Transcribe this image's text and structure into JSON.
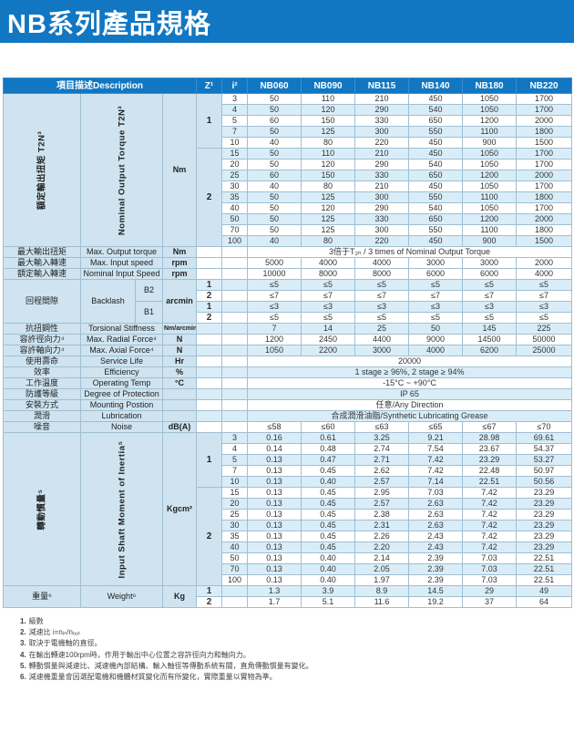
{
  "page_title": "NB系列產品規格",
  "colors": {
    "primary_blue": "#1277c2",
    "row_tint": "#d9edf8",
    "label_panel": "#cfe4f0"
  },
  "table": {
    "header": {
      "description": "項目描述Description",
      "z": "Z¹",
      "i": "i²",
      "models": [
        "NB060",
        "NB090",
        "NB115",
        "NB140",
        "NB180",
        "NB220"
      ]
    },
    "sections": [
      {
        "type": "matrix",
        "id": "nominal-output-torque",
        "zh": "額定輸出扭矩  T2N³",
        "en": "Nominal Output Torque T2N³",
        "unit": "Nm",
        "stripe_start": "white",
        "groups": [
          {
            "z": "1",
            "rows": [
              {
                "i": "3",
                "v": [
                  "50",
                  "110",
                  "210",
                  "450",
                  "1050",
                  "1700"
                ]
              },
              {
                "i": "4",
                "v": [
                  "50",
                  "120",
                  "290",
                  "540",
                  "1050",
                  "1700"
                ]
              },
              {
                "i": "5",
                "v": [
                  "60",
                  "150",
                  "330",
                  "650",
                  "1200",
                  "2000"
                ]
              },
              {
                "i": "7",
                "v": [
                  "50",
                  "125",
                  "300",
                  "550",
                  "1100",
                  "1800"
                ]
              },
              {
                "i": "10",
                "v": [
                  "40",
                  "80",
                  "220",
                  "450",
                  "900",
                  "1500"
                ]
              }
            ]
          },
          {
            "z": "2",
            "rows": [
              {
                "i": "15",
                "v": [
                  "50",
                  "110",
                  "210",
                  "450",
                  "1050",
                  "1700"
                ]
              },
              {
                "i": "20",
                "v": [
                  "50",
                  "120",
                  "290",
                  "540",
                  "1050",
                  "1700"
                ]
              },
              {
                "i": "25",
                "v": [
                  "60",
                  "150",
                  "330",
                  "650",
                  "1200",
                  "2000"
                ]
              },
              {
                "i": "30",
                "v": [
                  "40",
                  "80",
                  "210",
                  "450",
                  "1050",
                  "1700"
                ]
              },
              {
                "i": "35",
                "v": [
                  "50",
                  "125",
                  "300",
                  "550",
                  "1100",
                  "1800"
                ]
              },
              {
                "i": "40",
                "v": [
                  "50",
                  "120",
                  "290",
                  "540",
                  "1050",
                  "1700"
                ]
              },
              {
                "i": "50",
                "v": [
                  "50",
                  "125",
                  "330",
                  "650",
                  "1200",
                  "2000"
                ]
              },
              {
                "i": "70",
                "v": [
                  "50",
                  "125",
                  "300",
                  "550",
                  "1100",
                  "1800"
                ]
              },
              {
                "i": "100",
                "v": [
                  "40",
                  "80",
                  "220",
                  "450",
                  "900",
                  "1500"
                ]
              }
            ]
          }
        ]
      },
      {
        "type": "single",
        "zh": "最大輸出扭矩",
        "en": "Max. Output torque",
        "unit": "Nm",
        "merged": "3倍于T₂ₙ / 3 times of Nominal Output Torque",
        "tint": false
      },
      {
        "type": "single",
        "zh": "最大輸入轉速",
        "en": "Max. Input speed",
        "unit": "rpm",
        "values": [
          "5000",
          "4000",
          "4000",
          "3000",
          "3000",
          "2000"
        ],
        "tint": false
      },
      {
        "type": "single",
        "zh": "額定輸入轉速",
        "en": "Nominal Input Speed",
        "unit": "rpm",
        "values": [
          "10000",
          "8000",
          "8000",
          "6000",
          "6000",
          "4000"
        ],
        "tint": false
      },
      {
        "type": "backlash",
        "zh": "回程間隙",
        "en": "Backlash",
        "unit": "arcmin",
        "tints": [
          true,
          false,
          true,
          false
        ],
        "grades": [
          {
            "label": "B2",
            "rows": [
              {
                "z": "1",
                "values": [
                  "≤5",
                  "≤5",
                  "≤5",
                  "≤5",
                  "≤5",
                  "≤5"
                ]
              },
              {
                "z": "2",
                "values": [
                  "≤7",
                  "≤7",
                  "≤7",
                  "≤7",
                  "≤7",
                  "≤7"
                ]
              }
            ]
          },
          {
            "label": "B1",
            "rows": [
              {
                "z": "1",
                "values": [
                  "≤3",
                  "≤3",
                  "≤3",
                  "≤3",
                  "≤3",
                  "≤3"
                ]
              },
              {
                "z": "2",
                "values": [
                  "≤5",
                  "≤5",
                  "≤5",
                  "≤5",
                  "≤5",
                  "≤5"
                ]
              }
            ]
          }
        ]
      },
      {
        "type": "single",
        "zh": "抗扭鋼性",
        "en": "Torsional Stiffness",
        "unit": "Nm/arcmin",
        "values": [
          "7",
          "14",
          "25",
          "50",
          "145",
          "225"
        ],
        "tint": true
      },
      {
        "type": "single",
        "zh": "容許徑向力⁴",
        "en": "Max. Radial Force⁴",
        "unit": "N",
        "values": [
          "1200",
          "2450",
          "4400",
          "9000",
          "14500",
          "50000"
        ],
        "tint": false
      },
      {
        "type": "single",
        "zh": "容許軸向力⁴",
        "en": "Max. Axial Force⁴",
        "unit": "N",
        "values": [
          "1050",
          "2200",
          "3000",
          "4000",
          "6200",
          "25000"
        ],
        "tint": true
      },
      {
        "type": "single",
        "zh": "使用壽命",
        "en": "Service Life",
        "unit": "Hr",
        "merged": "20000",
        "tint": false
      },
      {
        "type": "single",
        "zh": "效率",
        "en": "Efficiency",
        "unit": "%",
        "merged": "1 stage ≥ 96%,  2 stage ≥ 94%",
        "tint": true
      },
      {
        "type": "single",
        "zh": "工作溫度",
        "en": "Operating Temp",
        "unit": "°C",
        "merged": "-15°C ~ +90°C",
        "tint": false
      },
      {
        "type": "single",
        "zh": "防護等級",
        "en": "Degree of Protection",
        "unit": "",
        "merged": "IP 65",
        "tint": true
      },
      {
        "type": "single",
        "zh": "安裝方式",
        "en": "Mounting Postion",
        "unit": "",
        "merged": "任意/Any Direction",
        "tint": false
      },
      {
        "type": "single",
        "zh": "潤滑",
        "en": "Lubrication",
        "unit": "",
        "merged": "合成潤滑油脂/Synthetic Lubricating Grease",
        "tint": true
      },
      {
        "type": "single",
        "zh": "噪音",
        "en": "Noise",
        "unit": "dB(A)",
        "values": [
          "≤58",
          "≤60",
          "≤63",
          "≤65",
          "≤67",
          "≤70"
        ],
        "tint": false
      },
      {
        "type": "matrix",
        "id": "input-shaft-moment-of-inertia",
        "zh": "轉動慣量⁵",
        "en": "Input Shaft Moment of Inertia⁵",
        "unit": "Kgcm²",
        "stripe_start": "blue",
        "groups": [
          {
            "z": "1",
            "rows": [
              {
                "i": "3",
                "v": [
                  "0.16",
                  "0.61",
                  "3.25",
                  "9.21",
                  "28.98",
                  "69.61"
                ]
              },
              {
                "i": "4",
                "v": [
                  "0.14",
                  "0.48",
                  "2.74",
                  "7.54",
                  "23.67",
                  "54.37"
                ]
              },
              {
                "i": "5",
                "v": [
                  "0.13",
                  "0.47",
                  "2.71",
                  "7.42",
                  "23.29",
                  "53.27"
                ]
              },
              {
                "i": "7",
                "v": [
                  "0.13",
                  "0.45",
                  "2.62",
                  "7.42",
                  "22.48",
                  "50.97"
                ]
              },
              {
                "i": "10",
                "v": [
                  "0.13",
                  "0.40",
                  "2.57",
                  "7.14",
                  "22.51",
                  "50.56"
                ]
              }
            ]
          },
          {
            "z": "2",
            "rows": [
              {
                "i": "15",
                "v": [
                  "0.13",
                  "0.45",
                  "2.95",
                  "7.03",
                  "7.42",
                  "23.29"
                ]
              },
              {
                "i": "20",
                "v": [
                  "0.13",
                  "0.45",
                  "2.57",
                  "2.63",
                  "7.42",
                  "23.29"
                ]
              },
              {
                "i": "25",
                "v": [
                  "0.13",
                  "0.45",
                  "2.38",
                  "2.63",
                  "7.42",
                  "23.29"
                ]
              },
              {
                "i": "30",
                "v": [
                  "0.13",
                  "0.45",
                  "2.31",
                  "2.63",
                  "7.42",
                  "23.29"
                ]
              },
              {
                "i": "35",
                "v": [
                  "0.13",
                  "0.45",
                  "2.26",
                  "2.43",
                  "7.42",
                  "23.29"
                ]
              },
              {
                "i": "40",
                "v": [
                  "0.13",
                  "0.45",
                  "2.20",
                  "2.43",
                  "7.42",
                  "23.29"
                ]
              },
              {
                "i": "50",
                "v": [
                  "0.13",
                  "0.40",
                  "2.14",
                  "2.39",
                  "7.03",
                  "22.51"
                ]
              },
              {
                "i": "70",
                "v": [
                  "0.13",
                  "0.40",
                  "2.05",
                  "2.39",
                  "7.03",
                  "22.51"
                ]
              },
              {
                "i": "100",
                "v": [
                  "0.13",
                  "0.40",
                  "1.97",
                  "2.39",
                  "7.03",
                  "22.51"
                ]
              }
            ]
          }
        ]
      },
      {
        "type": "weight",
        "zh": "重量⁶",
        "en": "Weight⁶",
        "unit": "Kg",
        "tints": [
          true,
          false
        ],
        "rows": [
          {
            "z": "1",
            "values": [
              "1.3",
              "3.9",
              "8.9",
              "14.5",
              "29",
              "49"
            ]
          },
          {
            "z": "2",
            "values": [
              "1.7",
              "5.1",
              "11.6",
              "19.2",
              "37",
              "64"
            ]
          }
        ]
      }
    ]
  },
  "footnotes": [
    {
      "num": "1.",
      "text": "級數"
    },
    {
      "num": "2.",
      "text": "減速比 i=nᵢₙ/nₒᵤₜ"
    },
    {
      "num": "3.",
      "text": "取決于電機軸的直徑。"
    },
    {
      "num": "4.",
      "text": "在輸出轉速100rpm時，作用于輸出中心位置之容許徑向力和軸向力。"
    },
    {
      "num": "5.",
      "text": "轉動慣量與減速比、減速機內部結構、輸入軸徑等傳動系統有關，直角傳動慣量有變化。"
    },
    {
      "num": "6.",
      "text": "減速機重量會因選配電機和機體材質變化而有所變化，實際重量以實物為準。"
    }
  ]
}
